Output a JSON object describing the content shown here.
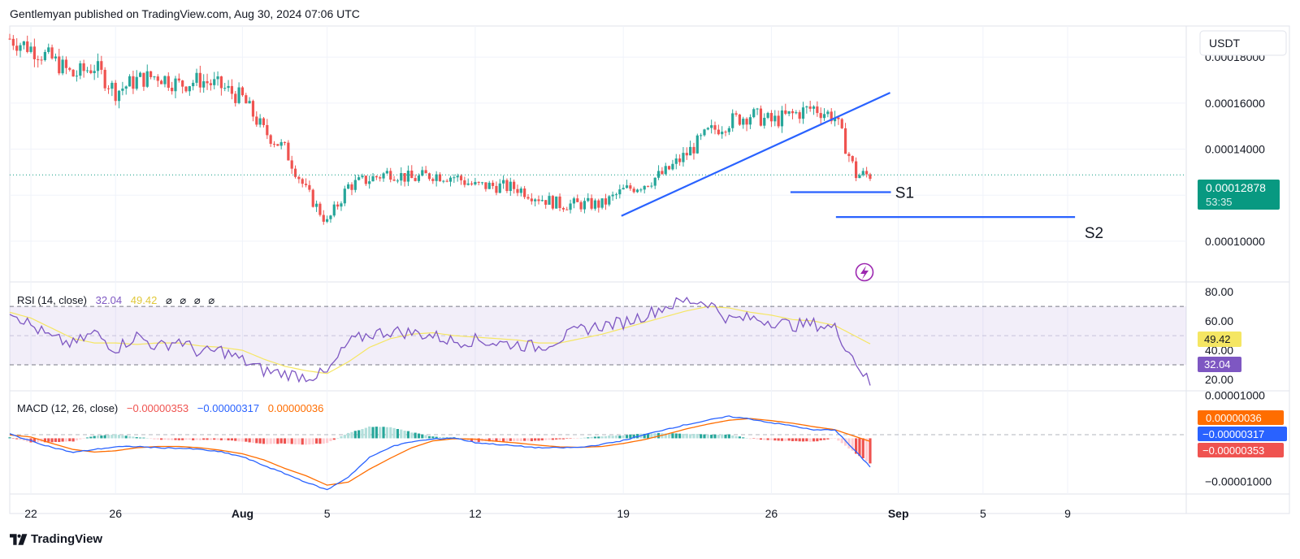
{
  "header": {
    "published": "Gentlemyan published on TradingView.com, Aug 30, 2024 07:06 UTC"
  },
  "footer": {
    "brand": "TradingView",
    "logo_icon": "tradingview-logo-icon"
  },
  "colors": {
    "up": "#26a69a",
    "down": "#ef5350",
    "trendline": "#2962ff",
    "rsi": "#7e57c2",
    "rsi_ma": "#f5e663",
    "macd": "#2962ff",
    "signal": "#ff6d00",
    "hist_pos": "#26a69a",
    "hist_neg": "#ef5350",
    "last_price_bg": "#089981"
  },
  "chart_data": [
    {
      "type": "candlestick",
      "currency_label": "USDT",
      "x_ticks": [
        "22",
        "26",
        "Aug",
        "5",
        "12",
        "19",
        "26",
        "Sep",
        "5",
        "9"
      ],
      "y_ticks": [
        "0.00018000",
        "0.00016000",
        "0.00014000",
        "0.00010000"
      ],
      "ylim": [
        8.3e-05,
        0.0001935
      ],
      "last_price": "0.00012878",
      "countdown": "53:35",
      "annotations": [
        {
          "label": "S1",
          "price": 0.0001213
        },
        {
          "label": "S2",
          "price": 0.0001105
        }
      ],
      "trendline": {
        "from": [
          "Aug 19",
          0.000111
        ],
        "to": [
          "Aug 30",
          0.000153
        ]
      },
      "path": [
        [
          "Jul 21",
          0.000188
        ],
        [
          "Jul 22",
          0.000184
        ],
        [
          "Jul 23",
          0.000179
        ],
        [
          "Jul 24",
          0.000172
        ],
        [
          "Jul 25",
          0.000176
        ],
        [
          "Jul 26",
          0.000165
        ],
        [
          "Jul 27",
          0.00017
        ],
        [
          "Jul 28",
          0.000172
        ],
        [
          "Jul 29",
          0.000168
        ],
        [
          "Jul 30",
          0.00017
        ],
        [
          "Jul 31",
          0.000167
        ],
        [
          "Aug 1",
          0.000162
        ],
        [
          "Aug 2",
          0.000148
        ],
        [
          "Aug 3",
          0.00014
        ],
        [
          "Aug 4",
          0.000122
        ],
        [
          "Aug 5",
          0.000108
        ],
        [
          "Aug 6",
          0.000124
        ],
        [
          "Aug 7",
          0.000127
        ],
        [
          "Aug 8",
          0.00013
        ],
        [
          "Aug 9",
          0.000127
        ],
        [
          "Aug 10",
          0.000129
        ],
        [
          "Aug 11",
          0.000128
        ],
        [
          "Aug 12",
          0.000124
        ],
        [
          "Aug 13",
          0.000124
        ],
        [
          "Aug 14",
          0.000123
        ],
        [
          "Aug 15",
          0.000119
        ],
        [
          "Aug 16",
          0.000116
        ],
        [
          "Aug 17",
          0.000116
        ],
        [
          "Aug 18",
          0.000116
        ],
        [
          "Aug 19",
          0.000122
        ],
        [
          "Aug 20",
          0.000125
        ],
        [
          "Aug 21",
          0.00013
        ],
        [
          "Aug 22",
          0.000138
        ],
        [
          "Aug 23",
          0.000147
        ],
        [
          "Aug 24",
          0.000152
        ],
        [
          "Aug 25",
          0.000155
        ],
        [
          "Aug 26",
          0.000152
        ],
        [
          "Aug 27",
          0.000155
        ],
        [
          "Aug 28",
          0.000158
        ],
        [
          "Aug 29",
          0.000154
        ],
        [
          "Aug 30",
          0.0001288
        ]
      ]
    },
    {
      "type": "line",
      "title": "RSI (14, close)",
      "values_text": [
        "32.04",
        "49.42"
      ],
      "na_marks": [
        "⌀",
        "⌀",
        "⌀",
        "⌀"
      ],
      "y_ticks": [
        "80.00",
        "60.00",
        "40.00",
        "20.00"
      ],
      "ylim": [
        15,
        84
      ],
      "bands": [
        70,
        50,
        30
      ],
      "series": [
        {
          "values": [
            68,
            57,
            48,
            44,
            52,
            41,
            50,
            42,
            47,
            38,
            40,
            33,
            26,
            24,
            22,
            24,
            45,
            51,
            53,
            52,
            50,
            46,
            47,
            45,
            44,
            42,
            48,
            54,
            57,
            59,
            64,
            70,
            74,
            73,
            61,
            62,
            60,
            57,
            58,
            55,
            32
          ]
        },
        {
          "values": [
            66,
            62,
            55,
            48,
            45,
            45,
            44,
            45,
            45,
            43,
            42,
            40,
            34,
            29,
            26,
            24,
            32,
            42,
            48,
            51,
            52,
            50,
            49,
            48,
            47,
            45,
            45,
            48,
            51,
            55,
            59,
            63,
            67,
            70,
            69,
            66,
            64,
            61,
            60,
            57,
            49.42
          ]
        }
      ]
    },
    {
      "type": "line",
      "title": "MACD (12, 26, close)",
      "values_text": [
        "−0.00000353",
        "−0.00000317",
        "0.00000036"
      ],
      "y_ticks": [
        "0.00001000",
        "−0.00001000"
      ],
      "ylim": [
        -1.22e-05,
        1.01e-05
      ],
      "series": [
        {
          "values": [
            1.0,
            -0.6,
            -2.1,
            -3.3,
            -2.6,
            -2.0,
            -1.9,
            -2.2,
            -2.3,
            -2.6,
            -3.2,
            -4.3,
            -6.3,
            -8.2,
            -10.2,
            -12.0,
            -9.0,
            -4.5,
            -2.0,
            -0.8,
            -0.2,
            0.1,
            -1.0,
            -1.4,
            -1.8,
            -2.2,
            -2.2,
            -2.1,
            -1.4,
            -0.5,
            0.8,
            2.1,
            3.2,
            4.2,
            5.1,
            4.5,
            3.6,
            2.9,
            1.9,
            2.0,
            -3.17
          ]
        },
        {
          "values": [
            0.8,
            0.3,
            -1.2,
            -2.6,
            -3.2,
            -2.9,
            -2.2,
            -1.9,
            -1.9,
            -2.2,
            -2.8,
            -3.6,
            -5.0,
            -7.0,
            -8.7,
            -10.9,
            -10.2,
            -7.2,
            -4.6,
            -2.2,
            -0.6,
            -0.1,
            -0.2,
            -0.7,
            -1.1,
            -1.6,
            -2.0,
            -2.1,
            -1.9,
            -1.2,
            -0.3,
            0.9,
            2.2,
            3.3,
            4.2,
            4.6,
            4.1,
            3.5,
            2.7,
            2.0,
            0.36
          ]
        },
        {
          "values": [
            0.2,
            -0.9,
            -0.9,
            -0.7,
            0.6,
            0.9,
            0.3,
            -0.3,
            -0.4,
            -0.4,
            -0.4,
            -0.7,
            -1.3,
            -1.2,
            -1.5,
            -1.1,
            1.2,
            2.7,
            2.6,
            1.4,
            0.4,
            0.2,
            -0.8,
            -0.7,
            -0.7,
            -0.6,
            -0.2,
            0.0,
            0.5,
            0.7,
            1.1,
            1.2,
            1.0,
            0.9,
            0.9,
            -0.1,
            -0.5,
            -0.6,
            -0.8,
            0.0,
            -3.53
          ]
        }
      ]
    }
  ]
}
